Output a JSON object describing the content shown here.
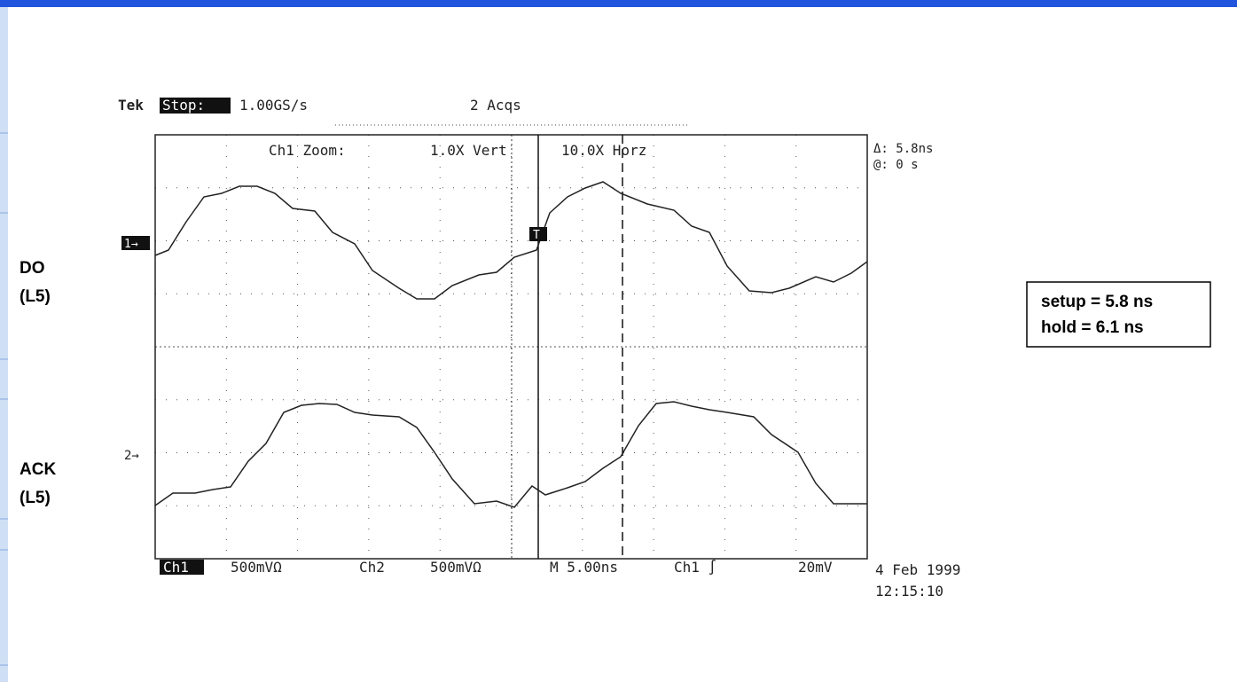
{
  "scope": {
    "header": {
      "brand": "Tek",
      "state": "Stop:",
      "rate": "1.00GS/s",
      "acquisitions": "2 Acqs"
    },
    "zoom": {
      "label": "Ch1 Zoom:",
      "vertical": "1.0X Vert",
      "horizontal": "10.0X Horz"
    },
    "cursor": {
      "delta": "Δ: 5.8ns",
      "at": "@: 0 s"
    },
    "markers": {
      "ch1": "1→",
      "ch2": "2→",
      "trigger": "T"
    },
    "footer": {
      "ch1": "Ch1",
      "ch1_scale": "500mVΩ",
      "ch2": "Ch2",
      "ch2_scale": "500mVΩ",
      "timebase": "M 5.00ns",
      "trigger": "Ch1 ∫",
      "level": "20mV",
      "date": "4 Feb 1999",
      "time": "12:15:10"
    }
  },
  "signals": [
    {
      "name": "DO",
      "sub": "(L5)"
    },
    {
      "name": "ACK",
      "sub": "(L5)"
    }
  ],
  "timing": {
    "setup": "setup = 5.8 ns",
    "hold": "hold = 6.1 ns"
  }
}
